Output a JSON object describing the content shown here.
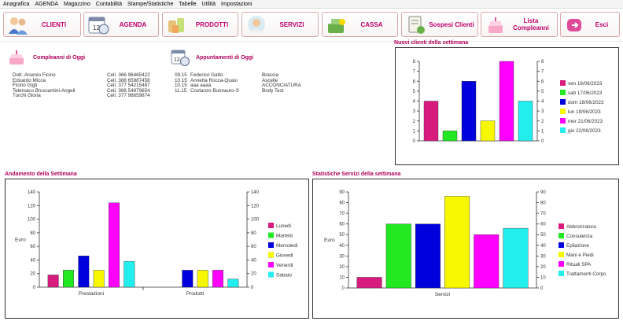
{
  "menu": [
    "Anagrafica",
    "AGENDA",
    "Magazzino",
    "Contabilità",
    "Stampe/Statistiche",
    "Tabelle",
    "Utilità",
    "Impostazioni"
  ],
  "toolbar": [
    {
      "label": "CLIENTI",
      "icon": "clients-icon"
    },
    {
      "label": "AGENDA",
      "icon": "calendar-icon"
    },
    {
      "label": "PRODOTTI",
      "icon": "products-icon"
    },
    {
      "label": "SERVIZI",
      "icon": "services-icon"
    },
    {
      "label": "CASSA",
      "icon": "cash-register-icon"
    },
    {
      "label": "Sospesi Clienti",
      "icon": "pending-clients-icon"
    },
    {
      "label": "Lista Compleanni",
      "icon": "birthday-cake-icon"
    },
    {
      "label": "Esci",
      "icon": "exit-icon"
    }
  ],
  "birthdays": {
    "title": "Compleanni di Oggi",
    "rows": [
      {
        "name": "Dott. Arsenio Ficino",
        "phone": "Cell. 366 96465422"
      },
      {
        "name": "Edoardo Micca",
        "phone": "Cell. 388 65987458"
      },
      {
        "name": "Ficino Gigli",
        "phone": "Cell. 377 54215487"
      },
      {
        "name": "Telemaco Bruscantini-Angeli",
        "phone": "Cell. 388 54879654"
      },
      {
        "name": "Turchi Gloria",
        "phone": "Cell. 377 98659874"
      }
    ]
  },
  "appointments": {
    "title": "Appuntamenti di Oggi",
    "rows": [
      {
        "time": "09.15",
        "name": "Federico Gatto",
        "service": "Braccia"
      },
      {
        "time": "10.15",
        "name": "Annetta Rocca-Quasi",
        "service": "Ascelle"
      },
      {
        "time": "10.15",
        "name": "aaa aaaa",
        "service": "ACCONCIATURA"
      },
      {
        "time": "11.15",
        "name": "Costanzo Buonauro-S",
        "service": "Body Test"
      }
    ]
  },
  "colors": {
    "magenta_pink": "#d81b7e",
    "green": "#22e822",
    "blue": "#0000dd",
    "yellow": "#f7f700",
    "magenta": "#ff00ff",
    "cyan": "#22eeee",
    "accent": "#b0005a"
  },
  "chart_data": [
    {
      "type": "bar",
      "title": "Nuovi clienti della settimana",
      "categories": [
        ""
      ],
      "series": [
        {
          "name": "ven 16/06/2023",
          "values": [
            4
          ],
          "color": "#d81b7e"
        },
        {
          "name": "sab 17/06/2023",
          "values": [
            1
          ],
          "color": "#22e822"
        },
        {
          "name": "dom 18/06/2023",
          "values": [
            6
          ],
          "color": "#0000dd"
        },
        {
          "name": "lun 19/06/2023",
          "values": [
            2
          ],
          "color": "#f7f700"
        },
        {
          "name": "mer 21/06/2023",
          "values": [
            8
          ],
          "color": "#ff00ff"
        },
        {
          "name": "gio 22/06/2023",
          "values": [
            4
          ],
          "color": "#22eeee"
        }
      ],
      "ylim": [
        0,
        8
      ],
      "yticks": [
        0,
        1,
        2,
        3,
        4,
        5,
        6,
        7,
        8
      ],
      "ylabel": "",
      "legend": "right"
    },
    {
      "type": "bar",
      "title": "Andamento della Settimana",
      "categories": [
        "Prestazioni",
        "Prodotti"
      ],
      "series": [
        {
          "name": "Lunedi",
          "values": [
            18,
            0
          ],
          "color": "#d81b7e"
        },
        {
          "name": "Martedi",
          "values": [
            25,
            0
          ],
          "color": "#22e822"
        },
        {
          "name": "Mercoledi",
          "values": [
            46,
            25
          ],
          "color": "#0000dd"
        },
        {
          "name": "Giovedi",
          "values": [
            25,
            25
          ],
          "color": "#f7f700"
        },
        {
          "name": "Venerdi",
          "values": [
            124,
            25
          ],
          "color": "#ff00ff"
        },
        {
          "name": "Sabato",
          "values": [
            38,
            12
          ],
          "color": "#22eeee"
        }
      ],
      "ylim": [
        0,
        140
      ],
      "yticks": [
        0,
        20,
        40,
        60,
        80,
        100,
        120,
        140
      ],
      "ylabel": "Euro",
      "legend": "right"
    },
    {
      "type": "bar",
      "title": "Statistiche Servizi della settimana",
      "categories": [
        "Servizi"
      ],
      "series": [
        {
          "name": "Abbronzatura",
          "values": [
            10
          ],
          "color": "#d81b7e"
        },
        {
          "name": "Consulenza",
          "values": [
            60
          ],
          "color": "#22e822"
        },
        {
          "name": "Epilazione",
          "values": [
            60
          ],
          "color": "#0000dd"
        },
        {
          "name": "Mani e Piedi",
          "values": [
            86
          ],
          "color": "#f7f700"
        },
        {
          "name": "Rituali SPA",
          "values": [
            50
          ],
          "color": "#ff00ff"
        },
        {
          "name": "Trattamenti Corpo",
          "values": [
            56
          ],
          "color": "#22eeee"
        }
      ],
      "ylim": [
        0,
        90
      ],
      "yticks": [
        0,
        10,
        20,
        30,
        40,
        50,
        60,
        70,
        80,
        90
      ],
      "ylabel": "Euro",
      "legend": "right"
    }
  ]
}
